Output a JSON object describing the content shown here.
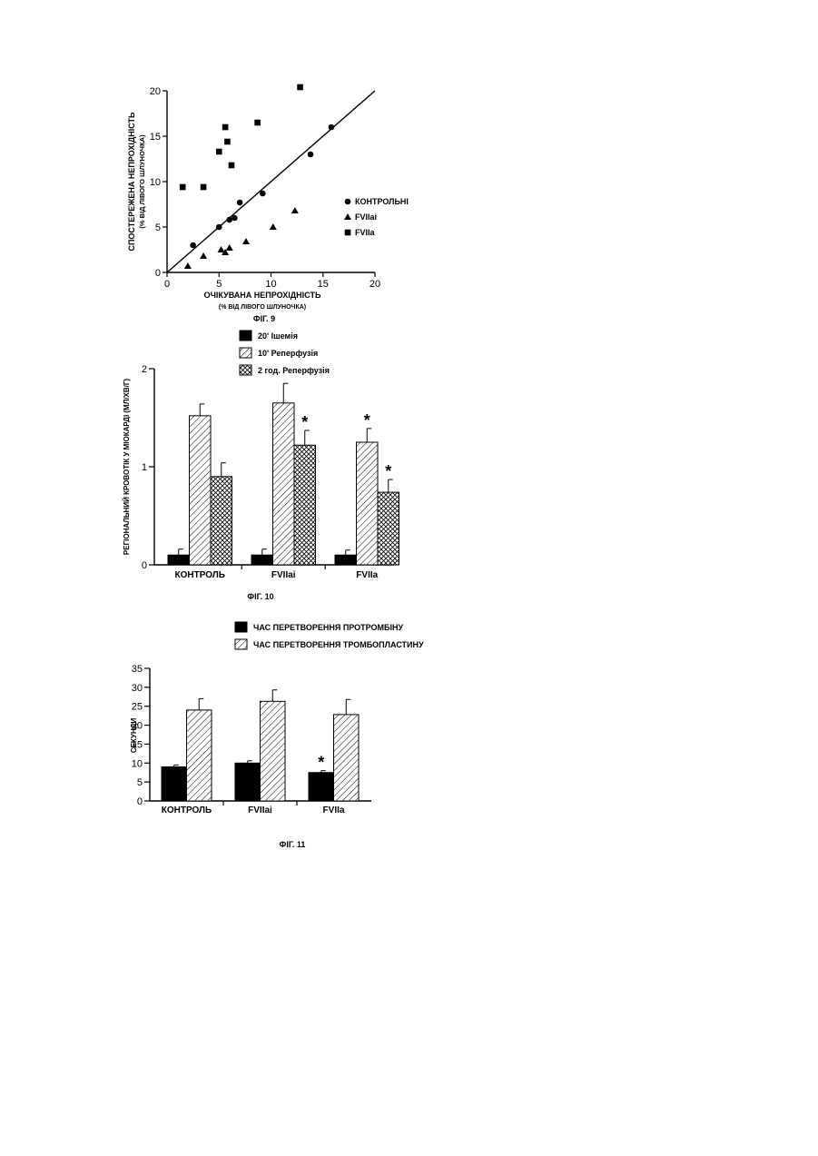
{
  "chart_data": [
    {
      "type": "scatter",
      "caption": "ФІГ. 9",
      "xlabel": "ОЧІКУВАНА НЕПРОХІДНІСТЬ",
      "xlabel_sub": "(% ВІД ЛІВОГО ШЛУНОЧКА)",
      "ylabel": "СПОСТЕРЕЖЕНА НЕПРОХІДНІСТЬ",
      "ylabel_sub": "(% ВІД ЛІВОГО ШЛУНОЧКА)",
      "xlim": [
        0,
        20
      ],
      "ylim": [
        0,
        20
      ],
      "xticks": [
        "0",
        "5",
        "10",
        "15",
        "20"
      ],
      "yticks": [
        "0",
        "5",
        "10",
        "15",
        "20"
      ],
      "identity_line": true,
      "legend_position": "right",
      "series": [
        {
          "name": "КОНТРОЛЬНІ",
          "marker": "circle",
          "points": [
            [
              2.5,
              3
            ],
            [
              5,
              5
            ],
            [
              6,
              5.8
            ],
            [
              6.5,
              6
            ],
            [
              7,
              7.7
            ],
            [
              9.2,
              8.7
            ],
            [
              13.8,
              13
            ],
            [
              15.8,
              16
            ]
          ]
        },
        {
          "name": "FVIIai",
          "marker": "triangle",
          "points": [
            [
              2,
              0.7
            ],
            [
              3.5,
              1.8
            ],
            [
              5.2,
              2.5
            ],
            [
              5.6,
              2.2
            ],
            [
              6,
              2.7
            ],
            [
              7.6,
              3.4
            ],
            [
              10.2,
              5
            ],
            [
              12.3,
              6.8
            ]
          ]
        },
        {
          "name": "FVIIa",
          "marker": "square",
          "points": [
            [
              1.5,
              9.4
            ],
            [
              3.5,
              9.4
            ],
            [
              5,
              13.3
            ],
            [
              5.6,
              16
            ],
            [
              5.8,
              14.4
            ],
            [
              6.2,
              11.8
            ],
            [
              8.7,
              16.5
            ],
            [
              12.8,
              20.4
            ]
          ]
        }
      ]
    },
    {
      "type": "bar",
      "caption": "ФІГ. 10",
      "ylabel": "РЕГІОНАЛЬНИЙ КРОВОТІК У МІОКАРДІ (МЛ/ХВ/Г)",
      "ylim": [
        0,
        2
      ],
      "yticks": [
        "0",
        "1",
        "2"
      ],
      "categories": [
        "КОНТРОЛЬ",
        "FVIIai",
        "FVIIa"
      ],
      "legend_position": "top",
      "series": [
        {
          "name": "20' Ішемія",
          "pattern": "solid",
          "values": [
            0.1,
            0.1,
            0.1
          ],
          "errors": [
            0.06,
            0.06,
            0.05
          ]
        },
        {
          "name": "10' Реперфузія",
          "pattern": "hatch",
          "values": [
            1.52,
            1.65,
            1.25
          ],
          "errors": [
            0.12,
            0.2,
            0.14
          ]
        },
        {
          "name": "2 год. Реперфузія",
          "pattern": "cross",
          "values": [
            0.9,
            1.22,
            0.74
          ],
          "errors": [
            0.14,
            0.15,
            0.13
          ]
        }
      ],
      "annotations": [
        {
          "text": "*",
          "category": 1,
          "series": 2
        },
        {
          "text": "*",
          "category": 2,
          "series": 1
        },
        {
          "text": "*",
          "category": 2,
          "series": 2
        }
      ]
    },
    {
      "type": "bar",
      "caption": "ФІГ. 11",
      "ylabel": "СЕКУНДИ",
      "ylim": [
        0,
        35
      ],
      "yticks": [
        "0",
        "5",
        "10",
        "15",
        "20",
        "25",
        "30",
        "35"
      ],
      "categories": [
        "КОНТРОЛЬ",
        "FVIIai",
        "FVIIa"
      ],
      "legend_position": "top",
      "series": [
        {
          "name": "ЧАС ПЕРЕТВОРЕННЯ ПРОТРОМБІНУ",
          "pattern": "solid",
          "values": [
            9,
            10,
            7.5
          ],
          "errors": [
            0.5,
            0.6,
            0.5
          ]
        },
        {
          "name": "ЧАС ПЕРЕТВОРЕННЯ ТРОМБОПЛАСТИНУ",
          "pattern": "hatch",
          "values": [
            24,
            26.3,
            22.8
          ],
          "errors": [
            3,
            3,
            4
          ]
        }
      ],
      "annotations": [
        {
          "text": "*",
          "category": 2,
          "series": 0
        }
      ]
    }
  ]
}
